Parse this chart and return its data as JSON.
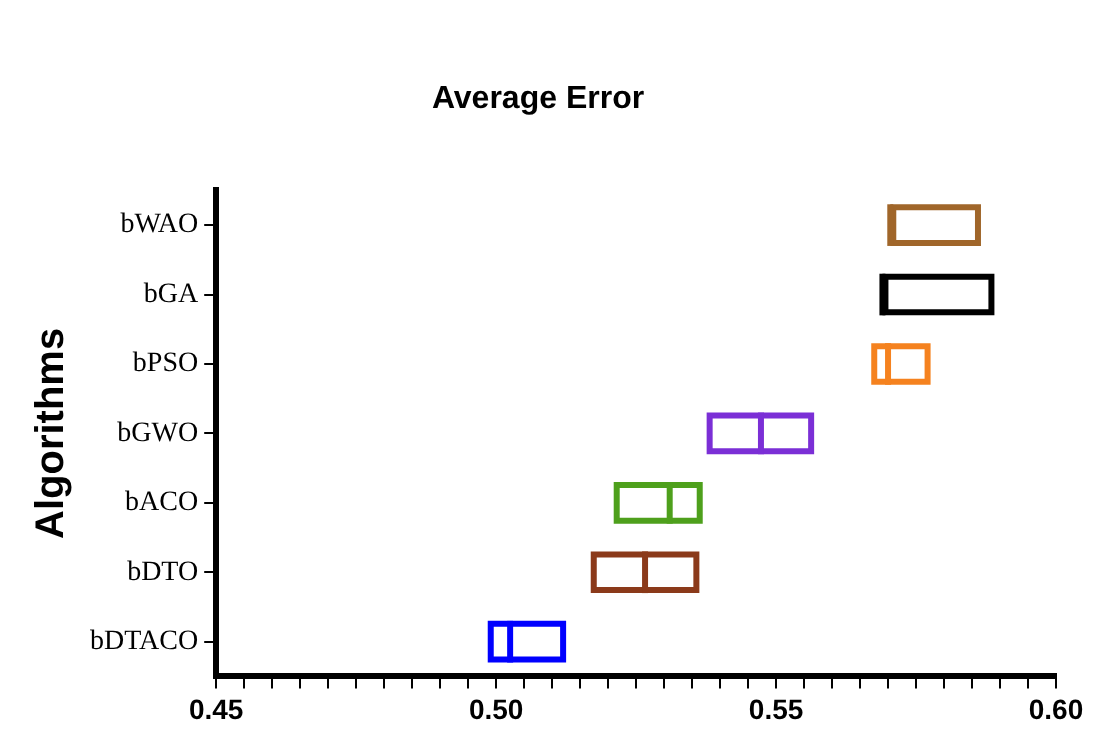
{
  "chart_data": {
    "type": "box",
    "title": "Average Error",
    "ylabel": "Algorithms",
    "orientation": "horizontal",
    "grid": false,
    "legend": false,
    "categories": [
      "bWAO",
      "bGA",
      "bPSO",
      "bGWO",
      "bACO",
      "bDTO",
      "bDTACO"
    ],
    "colors": [
      "#a0662a",
      "#000000",
      "#f5821f",
      "#7b2fd6",
      "#4ea01c",
      "#8b3a1a",
      "#0000ff"
    ],
    "boxes": [
      {
        "low": 0.5704,
        "q1": 0.5704,
        "median": 0.5704,
        "q3": 0.5866,
        "high": 0.5866
      },
      {
        "low": 0.569,
        "q1": 0.569,
        "median": 0.569,
        "q3": 0.589,
        "high": 0.589
      },
      {
        "low": 0.567,
        "q1": 0.567,
        "median": 0.57,
        "q3": 0.5776,
        "high": 0.5776
      },
      {
        "low": 0.5376,
        "q1": 0.5376,
        "median": 0.5473,
        "q3": 0.5568,
        "high": 0.5568
      },
      {
        "low": 0.521,
        "q1": 0.521,
        "median": 0.531,
        "q3": 0.5369,
        "high": 0.5369
      },
      {
        "low": 0.5169,
        "q1": 0.5169,
        "median": 0.5266,
        "q3": 0.5363,
        "high": 0.5363
      },
      {
        "low": 0.4985,
        "q1": 0.4985,
        "median": 0.5025,
        "q3": 0.5125,
        "high": 0.5125
      }
    ],
    "xlim": [
      0.45,
      0.6
    ],
    "xticks": [
      0.45,
      {
        "value": 0.455,
        "label": null
      },
      {
        "value": 0.46,
        "label": null
      },
      {
        "value": 0.465,
        "label": null
      },
      {
        "value": 0.47,
        "label": null
      },
      {
        "value": 0.475,
        "label": null
      },
      {
        "value": 0.48,
        "label": null
      },
      {
        "value": 0.485,
        "label": null
      },
      {
        "value": 0.49,
        "label": null
      },
      {
        "value": 0.495,
        "label": null
      },
      {
        "value": 0.5,
        "label": "0.50"
      },
      {
        "value": 0.505,
        "label": null
      },
      {
        "value": 0.51,
        "label": null
      },
      {
        "value": 0.515,
        "label": null
      },
      {
        "value": 0.52,
        "label": null
      },
      {
        "value": 0.525,
        "label": null
      },
      {
        "value": 0.53,
        "label": null
      },
      {
        "value": 0.535,
        "label": null
      },
      {
        "value": 0.54,
        "label": null
      },
      {
        "value": 0.545,
        "label": null
      },
      0.55,
      {
        "value": 0.555,
        "label": null
      },
      {
        "value": 0.56,
        "label": null
      },
      {
        "value": 0.565,
        "label": null
      },
      {
        "value": 0.57,
        "label": null
      },
      {
        "value": 0.575,
        "label": null
      },
      {
        "value": 0.58,
        "label": null
      },
      {
        "value": 0.585,
        "label": null
      },
      {
        "value": 0.59,
        "label": null
      },
      {
        "value": 0.595,
        "label": null
      },
      {
        "value": 0.6,
        "label": "0.60"
      }
    ]
  }
}
